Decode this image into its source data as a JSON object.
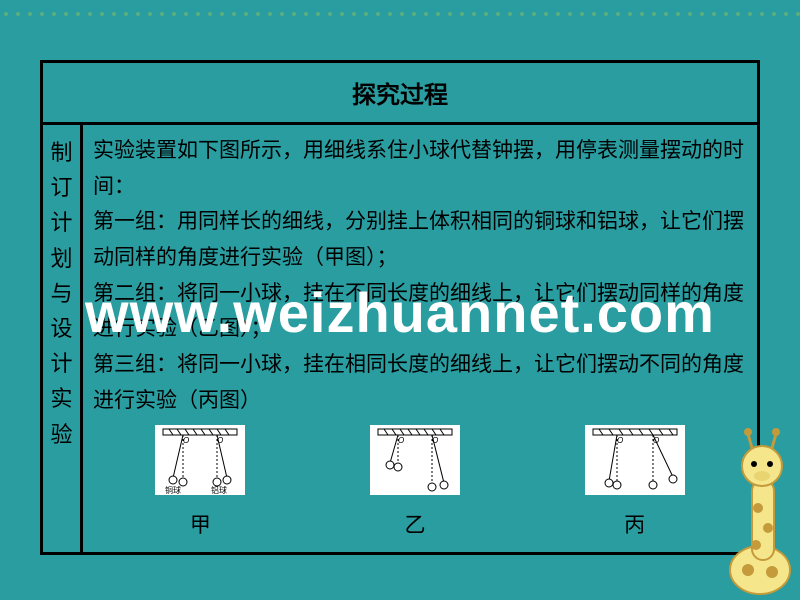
{
  "colors": {
    "background": "#2a9da0",
    "border": "#000000",
    "text": "#000000",
    "watermark": "#ffffff",
    "figure_bg": "#ffffff",
    "giraffe_body": "#f5e68c",
    "giraffe_spot": "#c49a3a",
    "grass_green": "#6fb56f"
  },
  "header": {
    "title": "探究过程"
  },
  "side_label": "制订计划与设计实验",
  "body": {
    "intro": "实验装置如下图所示，用细线系住小球代替钟摆，用停表测量摆动的时间：",
    "group1": "第一组：用同样长的细线，分别挂上体积相同的铜球和铝球，让它们摆动同样的角度进行实验（甲图）；",
    "group2": "第二组：将同一小球，挂在不同长度的细线上，让它们摆动同样的角度进行实验（乙图）；",
    "group3": "第三组：将同一小球，挂在相同长度的细线上，让它们摆动不同的角度进行实验（丙图）"
  },
  "figures": {
    "jia": {
      "label": "甲",
      "left_tag": "铜球",
      "right_tag": "铝球"
    },
    "yi": {
      "label": "乙"
    },
    "bing": {
      "label": "丙"
    }
  },
  "watermark": "www.weizhuannet.com",
  "typography": {
    "header_fontsize": 24,
    "body_fontsize": 21,
    "watermark_fontsize": 56
  }
}
